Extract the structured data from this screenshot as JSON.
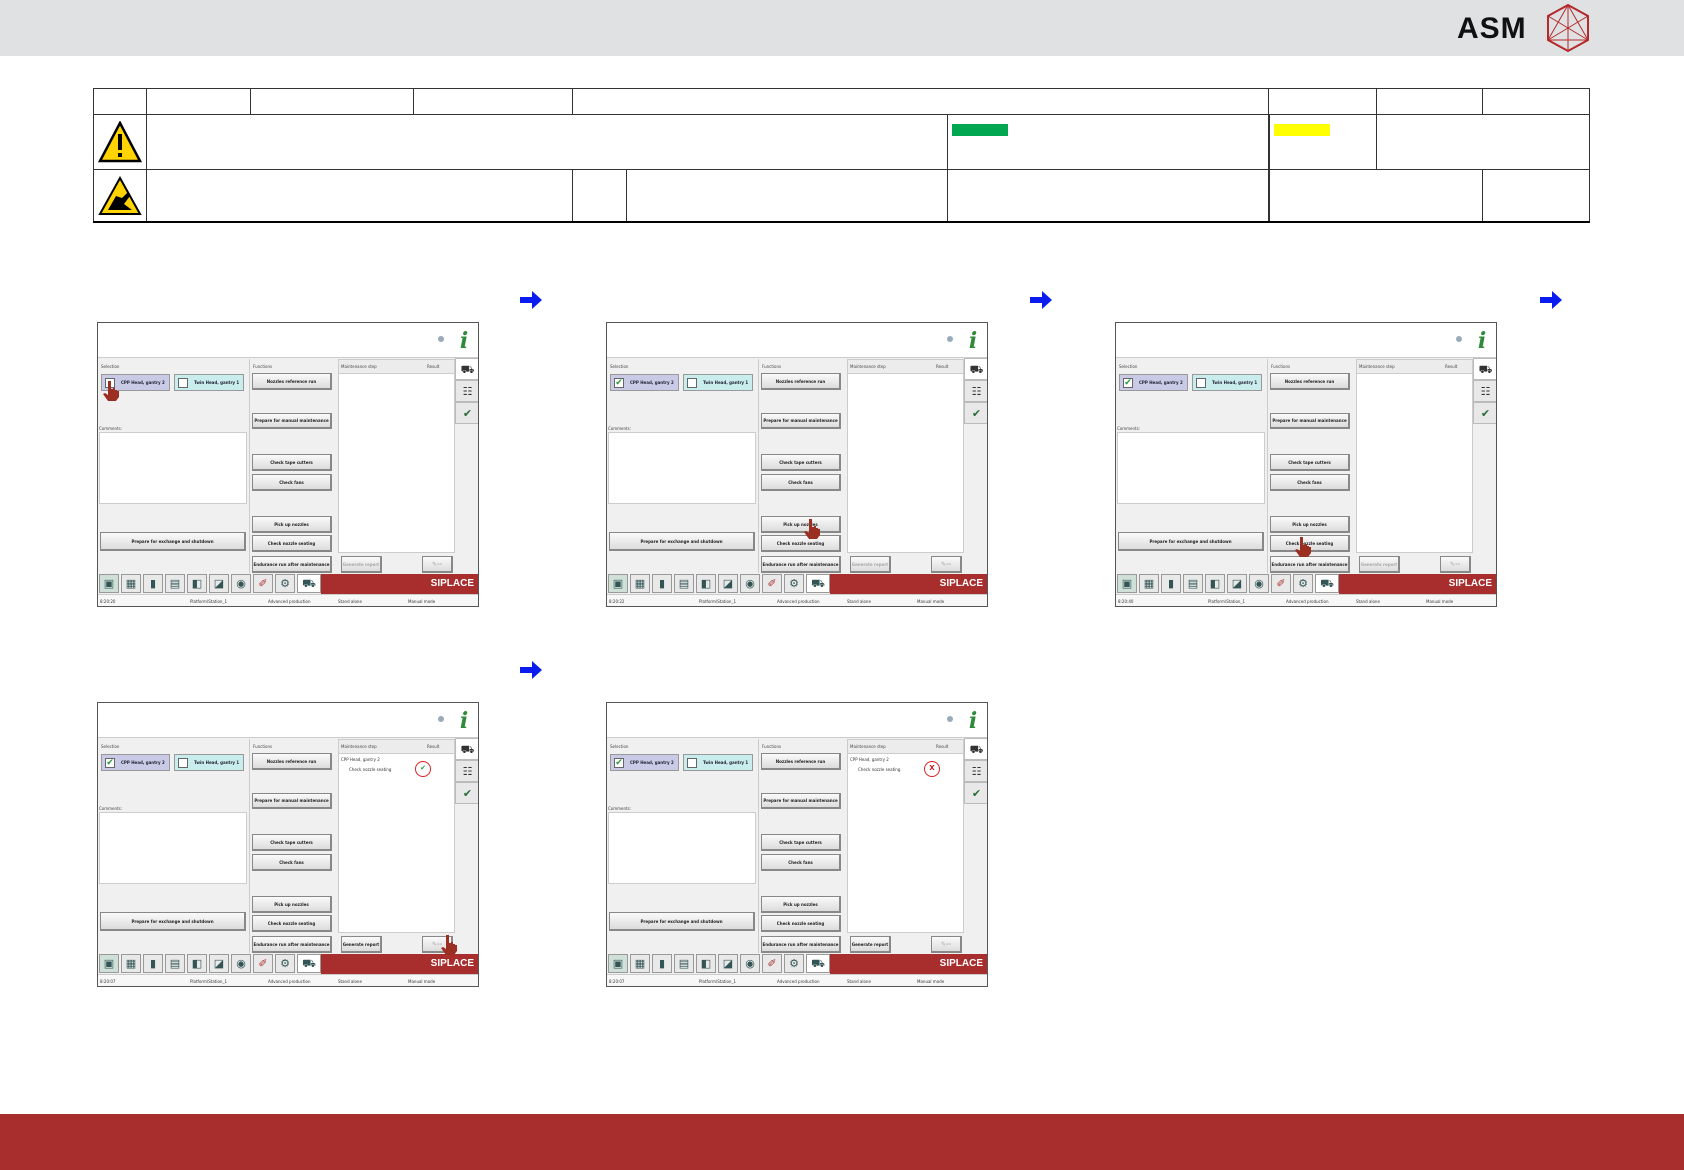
{
  "brand": {
    "logo": "ASM",
    "bar_color": "#e0e1e3",
    "footer_color": "#a82d2d"
  },
  "header_table": {
    "warning_icon": "warning-triangle-icon",
    "esd_icon": "esd-hand-icon",
    "status_colors": [
      "#00a650",
      "#ffff00"
    ]
  },
  "screens": [
    {
      "time": "8:20:20",
      "station": "Platform\\Station_1",
      "mode": "Advanced production",
      "op": "Stand alone",
      "manual": "Manual mode",
      "cpp_checked": false,
      "generate_enabled": false,
      "steps": [],
      "result": "",
      "pointer": "cpp-head-chip"
    },
    {
      "time": "8:20:22",
      "station": "Platform\\Station_1",
      "mode": "Advanced production",
      "op": "Stand alone",
      "manual": "Manual mode",
      "cpp_checked": true,
      "generate_enabled": false,
      "steps": [],
      "result": "",
      "pointer": "pick-up-nozzles-button"
    },
    {
      "time": "8:20:40",
      "station": "Platform\\Station_1",
      "mode": "Advanced production",
      "op": "Stand alone",
      "manual": "Manual mode",
      "cpp_checked": true,
      "generate_enabled": false,
      "steps": [],
      "result": "",
      "pointer": "check-nozzle-seating-button"
    },
    {
      "time": "8:20:07",
      "station": "Platform\\Station_1",
      "mode": "Advanced production",
      "op": "Stand alone",
      "manual": "Manual mode",
      "cpp_checked": true,
      "generate_enabled": true,
      "steps": [
        "CPP Head, gantry 2",
        "Check nozzle seating"
      ],
      "result": "✔",
      "result_color": "#2a9a3a",
      "pointer": "tool-button"
    },
    {
      "time": "8:20:07",
      "station": "Platform\\Station_1",
      "mode": "Advanced production",
      "op": "Stand alone",
      "manual": "Manual mode",
      "cpp_checked": true,
      "generate_enabled": true,
      "steps": [
        "CPP Head, gantry 2",
        "Check nozzle seating"
      ],
      "result": "X",
      "result_color": "#c02020",
      "pointer": ""
    }
  ],
  "ui": {
    "selection": "Selection",
    "cpp_head": "CPP Head, gantry 2",
    "twin_head": "Twin Head, gantry 1",
    "comments": "Comments:",
    "functions": "Functions",
    "maintenance_step": "Maintenance step",
    "result": "Result",
    "btn_nozzles_ref": "Nozzles reference run",
    "btn_prepare_manual": "Prepare for manual maintenance",
    "btn_tape_cutters": "Check tape cutters",
    "btn_fans": "Check fans",
    "btn_pick_up": "Pick up nozzles",
    "btn_nozzle_seating": "Check nozzle seating",
    "btn_endurance": "Endurance run after maintenance",
    "btn_exchange": "Prepare for exchange and shutdown",
    "btn_generate": "Generate report",
    "siplace": "SIPLACE",
    "tool_label": "--"
  }
}
